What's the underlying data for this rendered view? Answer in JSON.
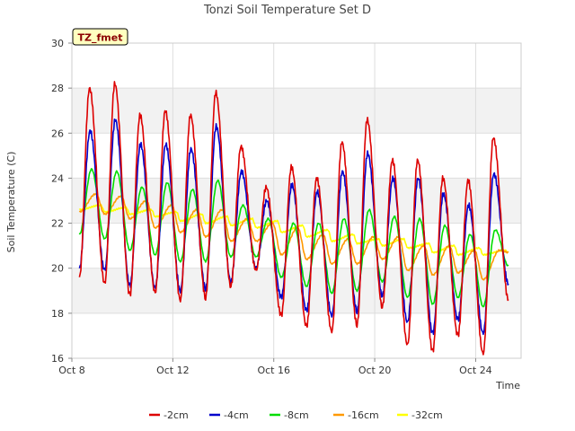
{
  "chart_data": {
    "type": "line",
    "title": "Tonzi Soil Temperature Set D",
    "xlabel": "Time",
    "ylabel": "Soil Temperature (C)",
    "badge": "TZ_fmet",
    "ylim": [
      16,
      30
    ],
    "xlim": [
      8,
      25.8
    ],
    "x_unit": "day of October",
    "yticks": [
      16,
      18,
      20,
      22,
      24,
      26,
      28,
      30
    ],
    "xticks": [
      {
        "value": 8,
        "label": "Oct 8"
      },
      {
        "value": 12,
        "label": "Oct 12"
      },
      {
        "value": 16,
        "label": "Oct 16"
      },
      {
        "value": 20,
        "label": "Oct 20"
      },
      {
        "value": 24,
        "label": "Oct 24"
      }
    ],
    "grid": true,
    "legend_position": "bottom",
    "day_starts": [
      8.3,
      9.3,
      10.3,
      11.3,
      12.3,
      13.3,
      14.3,
      15.3,
      16.3,
      17.3,
      18.3,
      19.3,
      20.3,
      21.3,
      22.3,
      23.3,
      24.3
    ],
    "x_end": 25.3,
    "series": [
      {
        "name": "-2cm",
        "color": "#dd0000",
        "peak_offset": 0.4,
        "maxima": [
          28.0,
          28.2,
          26.8,
          27.0,
          26.8,
          27.8,
          25.4,
          23.6,
          24.5,
          24.0,
          25.6,
          26.6,
          24.8,
          24.8,
          24.0,
          23.9,
          25.8
        ],
        "minima": [
          19.6,
          19.3,
          18.8,
          18.9,
          18.6,
          18.7,
          19.2,
          19.9,
          17.9,
          17.4,
          17.2,
          17.5,
          18.3,
          16.6,
          16.3,
          17.0,
          16.2
        ],
        "end_value": 18.6
      },
      {
        "name": "-4cm",
        "color": "#0000cc",
        "peak_offset": 0.42,
        "maxima": [
          26.1,
          26.6,
          25.5,
          25.5,
          25.3,
          26.3,
          24.3,
          23.0,
          23.7,
          23.4,
          24.3,
          25.1,
          24.0,
          24.0,
          23.3,
          22.8,
          24.2
        ],
        "minima": [
          20.0,
          19.9,
          19.2,
          19.1,
          19.0,
          19.1,
          19.4,
          20.0,
          18.7,
          18.1,
          17.9,
          18.1,
          18.8,
          17.6,
          17.1,
          17.7,
          17.1
        ],
        "end_value": 19.3
      },
      {
        "name": "-8cm",
        "color": "#00dd00",
        "peak_offset": 0.48,
        "maxima": [
          24.4,
          24.3,
          23.6,
          23.8,
          23.5,
          23.9,
          22.8,
          22.2,
          22.0,
          22.0,
          22.2,
          22.6,
          22.3,
          22.2,
          21.9,
          21.5,
          21.7
        ],
        "minima": [
          21.5,
          21.3,
          20.8,
          20.6,
          20.3,
          20.3,
          20.5,
          20.5,
          19.6,
          19.2,
          18.9,
          19.0,
          19.4,
          18.7,
          18.4,
          18.7,
          18.3
        ],
        "end_value": 20.1
      },
      {
        "name": "-16cm",
        "color": "#ff9900",
        "peak_offset": 0.65,
        "maxima": [
          23.3,
          23.2,
          23.0,
          22.8,
          22.6,
          22.6,
          22.2,
          22.0,
          21.8,
          21.5,
          21.3,
          21.4,
          21.4,
          21.0,
          21.0,
          20.8,
          20.8
        ],
        "minima": [
          22.5,
          22.4,
          22.2,
          21.8,
          21.6,
          21.4,
          21.2,
          21.2,
          20.6,
          20.4,
          20.2,
          20.2,
          20.4,
          19.9,
          19.7,
          19.8,
          19.5
        ],
        "end_value": 20.7
      },
      {
        "name": "-32cm",
        "color": "#ffff00",
        "peak_offset": 0.85,
        "maxima": [
          22.8,
          22.7,
          22.6,
          22.5,
          22.4,
          22.3,
          22.2,
          22.1,
          21.9,
          21.7,
          21.5,
          21.3,
          21.3,
          21.1,
          21.0,
          20.9,
          20.8
        ],
        "minima": [
          22.6,
          22.5,
          22.4,
          22.3,
          22.1,
          22.0,
          21.9,
          21.8,
          21.6,
          21.4,
          21.2,
          21.1,
          21.0,
          20.9,
          20.7,
          20.6,
          20.6
        ],
        "end_value": 20.7
      }
    ]
  }
}
